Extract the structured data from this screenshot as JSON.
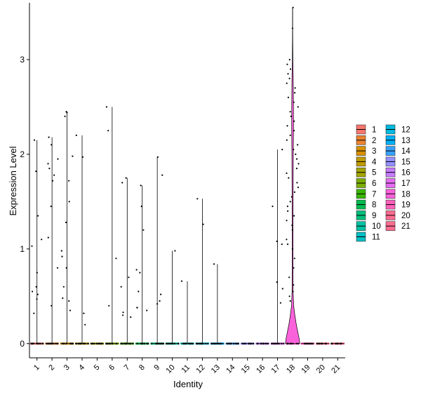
{
  "chart_data": {
    "type": "violin",
    "xlabel": "Identity",
    "ylabel": "Expression Level",
    "ylim": [
      -0.15,
      3.6
    ],
    "y_ticks": [
      0,
      1,
      2,
      3
    ],
    "y_tick_labels": [
      "0",
      "1",
      "2",
      "3"
    ],
    "categories": [
      "1",
      "2",
      "3",
      "4",
      "5",
      "6",
      "7",
      "8",
      "9",
      "10",
      "11",
      "12",
      "13",
      "14",
      "15",
      "16",
      "17",
      "18",
      "19",
      "20",
      "21"
    ],
    "legend": {
      "placement": "right",
      "entries": [
        {
          "label": "1",
          "color": "#F8766D"
        },
        {
          "label": "2",
          "color": "#EA8331"
        },
        {
          "label": "3",
          "color": "#D89000"
        },
        {
          "label": "4",
          "color": "#C09B00"
        },
        {
          "label": "5",
          "color": "#A3A500"
        },
        {
          "label": "6",
          "color": "#7CAE00"
        },
        {
          "label": "7",
          "color": "#39B600"
        },
        {
          "label": "8",
          "color": "#00BB4E"
        },
        {
          "label": "9",
          "color": "#00BF7D"
        },
        {
          "label": "10",
          "color": "#00C1A3"
        },
        {
          "label": "11",
          "color": "#00BFC4"
        },
        {
          "label": "12",
          "color": "#00BAE0"
        },
        {
          "label": "13",
          "color": "#00B0F6"
        },
        {
          "label": "14",
          "color": "#35A2FF"
        },
        {
          "label": "15",
          "color": "#9590FF"
        },
        {
          "label": "16",
          "color": "#C77CFF"
        },
        {
          "label": "17",
          "color": "#E76BF3"
        },
        {
          "label": "18",
          "color": "#FA62DB"
        },
        {
          "label": "19",
          "color": "#FF62BC"
        },
        {
          "label": "20",
          "color": "#FF6C91"
        },
        {
          "label": "21",
          "color": "#FF6C91"
        }
      ]
    },
    "series": [
      {
        "cluster": "1",
        "max": 2.15,
        "points": [
          0.47,
          0.52,
          0.55,
          0.32,
          0.6,
          0.75,
          1.03,
          1.1,
          1.35,
          1.82,
          2.15
        ]
      },
      {
        "cluster": "2",
        "max": 2.18,
        "points": [
          0.4,
          0.8,
          1.12,
          1.45,
          1.72,
          1.78,
          1.85,
          1.9,
          1.95,
          2.1,
          2.18
        ]
      },
      {
        "cluster": "3",
        "max": 2.45,
        "points": [
          0.35,
          0.45,
          0.48,
          0.6,
          0.8,
          0.92,
          0.98,
          1.28,
          1.5,
          1.72,
          1.98,
          2.4,
          2.45,
          2.44
        ]
      },
      {
        "cluster": "4",
        "max": 2.2,
        "points": [
          0.2,
          0.32,
          1.97,
          2.2
        ]
      },
      {
        "cluster": "5",
        "max": 0.0,
        "points": []
      },
      {
        "cluster": "6",
        "max": 2.5,
        "points": [
          0.4,
          0.9,
          2.25,
          2.5
        ]
      },
      {
        "cluster": "7",
        "max": 1.75,
        "points": [
          0.28,
          0.3,
          0.33,
          0.6,
          0.7,
          1.7,
          1.75
        ]
      },
      {
        "cluster": "8",
        "max": 1.67,
        "points": [
          0.35,
          0.38,
          0.38,
          0.55,
          0.75,
          0.78,
          1.2,
          1.45,
          1.67
        ]
      },
      {
        "cluster": "9",
        "max": 1.97,
        "points": [
          0.42,
          0.45,
          0.52,
          1.78,
          1.97
        ]
      },
      {
        "cluster": "10",
        "max": 0.98,
        "points": [
          0.98
        ]
      },
      {
        "cluster": "11",
        "max": 0.66,
        "points": [
          0.66
        ]
      },
      {
        "cluster": "12",
        "max": 1.53,
        "points": [
          1.26,
          1.53
        ]
      },
      {
        "cluster": "13",
        "max": 0.84,
        "points": [
          0.84
        ]
      },
      {
        "cluster": "14",
        "max": 0.0,
        "points": []
      },
      {
        "cluster": "15",
        "max": 0.0,
        "points": []
      },
      {
        "cluster": "16",
        "max": 0.0,
        "points": []
      },
      {
        "cluster": "17",
        "max": 2.05,
        "points": [
          0.43,
          0.58,
          0.65,
          1.05,
          1.08,
          1.45,
          2.05
        ]
      },
      {
        "cluster": "18",
        "max": 3.55,
        "points": [
          0.45,
          0.5,
          0.55,
          0.62,
          0.7,
          0.8,
          0.9,
          1.0,
          1.05,
          1.1,
          1.2,
          1.25,
          1.3,
          1.35,
          1.4,
          1.45,
          1.5,
          1.55,
          1.6,
          1.65,
          1.7,
          1.75,
          1.8,
          1.85,
          1.9,
          1.95,
          2.0,
          2.05,
          2.1,
          2.15,
          2.2,
          2.25,
          2.3,
          2.35,
          2.4,
          2.45,
          2.5,
          2.55,
          2.6,
          2.65,
          2.7,
          2.75,
          2.8,
          2.85,
          2.9,
          2.95,
          3.0,
          3.33,
          3.55
        ]
      },
      {
        "cluster": "19",
        "max": 0.0,
        "points": []
      },
      {
        "cluster": "20",
        "max": 0.0,
        "points": []
      },
      {
        "cluster": "21",
        "max": 0.0,
        "points": []
      }
    ]
  }
}
